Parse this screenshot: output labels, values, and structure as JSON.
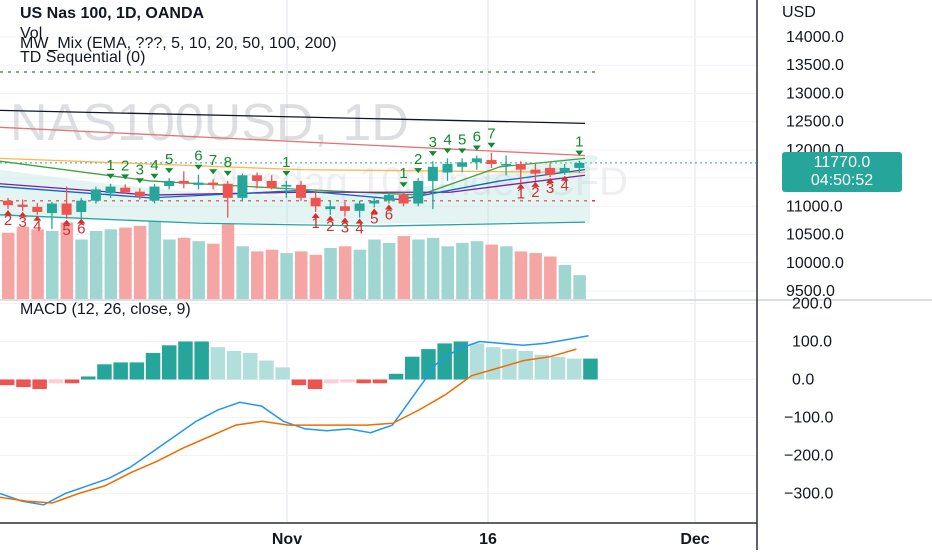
{
  "legend": {
    "title": "US Nas 100, 1D, OANDA",
    "vol": "Vol",
    "mw_mix": "MW_Mix (EMA, ???, 5, 10, 20, 50, 100, 200)",
    "td": "TD Sequential (0)",
    "macd": "MACD (12, 26, close, 9)"
  },
  "watermark": "NAS100USD, 1D",
  "watermark2": "Nasdaq 100 Index CFD",
  "price_axis": {
    "unit_label": "USD",
    "ticks": [
      "14000.0",
      "13500.0",
      "13000.0",
      "12500.0",
      "12000.0",
      "11500.0",
      "11000.0",
      "10500.0",
      "10000.0",
      "9500.0"
    ]
  },
  "last_price": {
    "value": "11770.0",
    "countdown": "04:50:52"
  },
  "macd_axis": {
    "ticks": [
      "200.0",
      "100.0",
      "0.0",
      "−100.0",
      "−200.0",
      "−300.0"
    ]
  },
  "time_axis": {
    "labels": [
      "Nov",
      "16",
      "Dec"
    ]
  },
  "colors": {
    "up": "#26a69a",
    "down": "#ef5350",
    "td_up": "#138a2f",
    "td_down": "#d32f2f",
    "macd_line": "#2196f3",
    "signal_line": "#ef6c00",
    "last_price_bg": "#26a69a"
  },
  "chart_data": {
    "type": "candlestick",
    "symbol": "US Nas 100",
    "timeframe": "1D",
    "broker": "OANDA",
    "unit": "USD",
    "price_range": [
      9400,
      14300
    ],
    "x_ticks": [
      "Nov",
      "16",
      "Dec"
    ],
    "candles": [
      {
        "o": 11100,
        "h": 11150,
        "l": 10950,
        "c": 11020
      },
      {
        "o": 11030,
        "h": 11120,
        "l": 10920,
        "c": 10990
      },
      {
        "o": 10990,
        "h": 11060,
        "l": 10850,
        "c": 10900
      },
      {
        "o": 10880,
        "h": 11080,
        "l": 10600,
        "c": 11050
      },
      {
        "o": 11050,
        "h": 11350,
        "l": 10780,
        "c": 10850
      },
      {
        "o": 10900,
        "h": 11150,
        "l": 10800,
        "c": 11100
      },
      {
        "o": 11100,
        "h": 11350,
        "l": 11050,
        "c": 11300
      },
      {
        "o": 11230,
        "h": 11400,
        "l": 11150,
        "c": 11350
      },
      {
        "o": 11330,
        "h": 11390,
        "l": 11220,
        "c": 11250
      },
      {
        "o": 11260,
        "h": 11320,
        "l": 11120,
        "c": 11180
      },
      {
        "o": 11100,
        "h": 11400,
        "l": 11050,
        "c": 11350
      },
      {
        "o": 11360,
        "h": 11500,
        "l": 11300,
        "c": 11450
      },
      {
        "o": 11450,
        "h": 11620,
        "l": 11320,
        "c": 11400
      },
      {
        "o": 11380,
        "h": 11560,
        "l": 11300,
        "c": 11420
      },
      {
        "o": 11420,
        "h": 11480,
        "l": 11300,
        "c": 11380
      },
      {
        "o": 11400,
        "h": 11450,
        "l": 10800,
        "c": 11150
      },
      {
        "o": 11150,
        "h": 11580,
        "l": 11100,
        "c": 11550
      },
      {
        "o": 11550,
        "h": 11600,
        "l": 11320,
        "c": 11450
      },
      {
        "o": 11450,
        "h": 11550,
        "l": 11300,
        "c": 11330
      },
      {
        "o": 11350,
        "h": 11450,
        "l": 11150,
        "c": 11380
      },
      {
        "o": 11380,
        "h": 11450,
        "l": 11100,
        "c": 11150
      },
      {
        "o": 11150,
        "h": 11300,
        "l": 10900,
        "c": 11000
      },
      {
        "o": 10950,
        "h": 11100,
        "l": 10850,
        "c": 11000
      },
      {
        "o": 11000,
        "h": 11080,
        "l": 10820,
        "c": 10920
      },
      {
        "o": 10920,
        "h": 11100,
        "l": 10800,
        "c": 11050
      },
      {
        "o": 11050,
        "h": 11150,
        "l": 10980,
        "c": 11100
      },
      {
        "o": 11100,
        "h": 11250,
        "l": 11050,
        "c": 11200
      },
      {
        "o": 11200,
        "h": 11250,
        "l": 11000,
        "c": 11050
      },
      {
        "o": 11050,
        "h": 11500,
        "l": 11000,
        "c": 11450
      },
      {
        "o": 11450,
        "h": 11800,
        "l": 10950,
        "c": 11700
      },
      {
        "o": 11600,
        "h": 11850,
        "l": 11450,
        "c": 11750
      },
      {
        "o": 11700,
        "h": 11850,
        "l": 11600,
        "c": 11780
      },
      {
        "o": 11780,
        "h": 11900,
        "l": 11650,
        "c": 11850
      },
      {
        "o": 11820,
        "h": 11950,
        "l": 11680,
        "c": 11750
      },
      {
        "o": 11750,
        "h": 11900,
        "l": 11550,
        "c": 11750
      },
      {
        "o": 11750,
        "h": 11800,
        "l": 11420,
        "c": 11650
      },
      {
        "o": 11650,
        "h": 11750,
        "l": 11450,
        "c": 11580
      },
      {
        "o": 11680,
        "h": 11760,
        "l": 11520,
        "c": 11560
      },
      {
        "o": 11600,
        "h": 11750,
        "l": 11560,
        "c": 11680
      },
      {
        "o": 11680,
        "h": 11810,
        "l": 11600,
        "c": 11770
      }
    ],
    "volume": [
      78,
      85,
      82,
      80,
      90,
      70,
      80,
      82,
      84,
      86,
      92,
      70,
      72,
      68,
      65,
      88,
      62,
      56,
      58,
      54,
      56,
      52,
      60,
      62,
      58,
      70,
      66,
      74,
      70,
      72,
      62,
      66,
      68,
      64,
      62,
      56,
      54,
      50,
      40,
      28
    ],
    "td_setup_labels": [
      {
        "i": 0,
        "text": "2",
        "side": "below"
      },
      {
        "i": 1,
        "text": "3",
        "side": "below"
      },
      {
        "i": 2,
        "text": "4",
        "side": "below"
      },
      {
        "i": 4,
        "text": "5",
        "side": "below"
      },
      {
        "i": 5,
        "text": "6",
        "side": "below"
      },
      {
        "i": 7,
        "text": "1",
        "side": "above"
      },
      {
        "i": 8,
        "text": "2",
        "side": "above"
      },
      {
        "i": 9,
        "text": "3",
        "side": "above"
      },
      {
        "i": 10,
        "text": "4",
        "side": "above"
      },
      {
        "i": 11,
        "text": "5",
        "side": "above"
      },
      {
        "i": 13,
        "text": "6",
        "side": "above"
      },
      {
        "i": 14,
        "text": "7",
        "side": "above"
      },
      {
        "i": 15,
        "text": "8",
        "side": "above"
      },
      {
        "i": 19,
        "text": "1",
        "side": "above"
      },
      {
        "i": 21,
        "text": "1",
        "side": "below"
      },
      {
        "i": 22,
        "text": "2",
        "side": "below"
      },
      {
        "i": 23,
        "text": "3",
        "side": "below"
      },
      {
        "i": 24,
        "text": "4",
        "side": "below"
      },
      {
        "i": 25,
        "text": "5",
        "side": "below"
      },
      {
        "i": 26,
        "text": "6",
        "side": "below"
      },
      {
        "i": 27,
        "text": "1",
        "side": "above"
      },
      {
        "i": 28,
        "text": "2",
        "side": "above"
      },
      {
        "i": 29,
        "text": "3",
        "side": "above"
      },
      {
        "i": 30,
        "text": "4",
        "side": "above"
      },
      {
        "i": 31,
        "text": "5",
        "side": "above"
      },
      {
        "i": 32,
        "text": "6",
        "side": "above"
      },
      {
        "i": 33,
        "text": "7",
        "side": "above"
      },
      {
        "i": 35,
        "text": "1",
        "side": "below"
      },
      {
        "i": 36,
        "text": "2",
        "side": "below"
      },
      {
        "i": 37,
        "text": "3",
        "side": "below"
      },
      {
        "i": 38,
        "text": "4",
        "side": "below"
      },
      {
        "i": 39,
        "text": "1",
        "side": "above"
      }
    ],
    "macd": {
      "range": [
        -340,
        215
      ],
      "histogram": [
        -15,
        -20,
        -25,
        -10,
        -10,
        8,
        40,
        45,
        45,
        70,
        90,
        100,
        100,
        85,
        75,
        70,
        50,
        32,
        -15,
        -25,
        -10,
        -8,
        -10,
        -10,
        15,
        60,
        80,
        95,
        100,
        95,
        85,
        80,
        75,
        65,
        60,
        55,
        55
      ],
      "macd_line": [
        -300,
        -320,
        -330,
        -300,
        -280,
        -260,
        -230,
        -190,
        -150,
        -110,
        -80,
        -60,
        -70,
        -110,
        -130,
        -135,
        -130,
        -140,
        -120,
        -40,
        40,
        80,
        100,
        95,
        90,
        95,
        105,
        115
      ],
      "signal_line": [
        -310,
        -320,
        -325,
        -300,
        -280,
        -245,
        -215,
        -180,
        -150,
        -120,
        -110,
        -120,
        -120,
        -120,
        -120,
        -115,
        -80,
        -40,
        10,
        30,
        50,
        60,
        80
      ]
    },
    "ema_lines_count": 6
  }
}
